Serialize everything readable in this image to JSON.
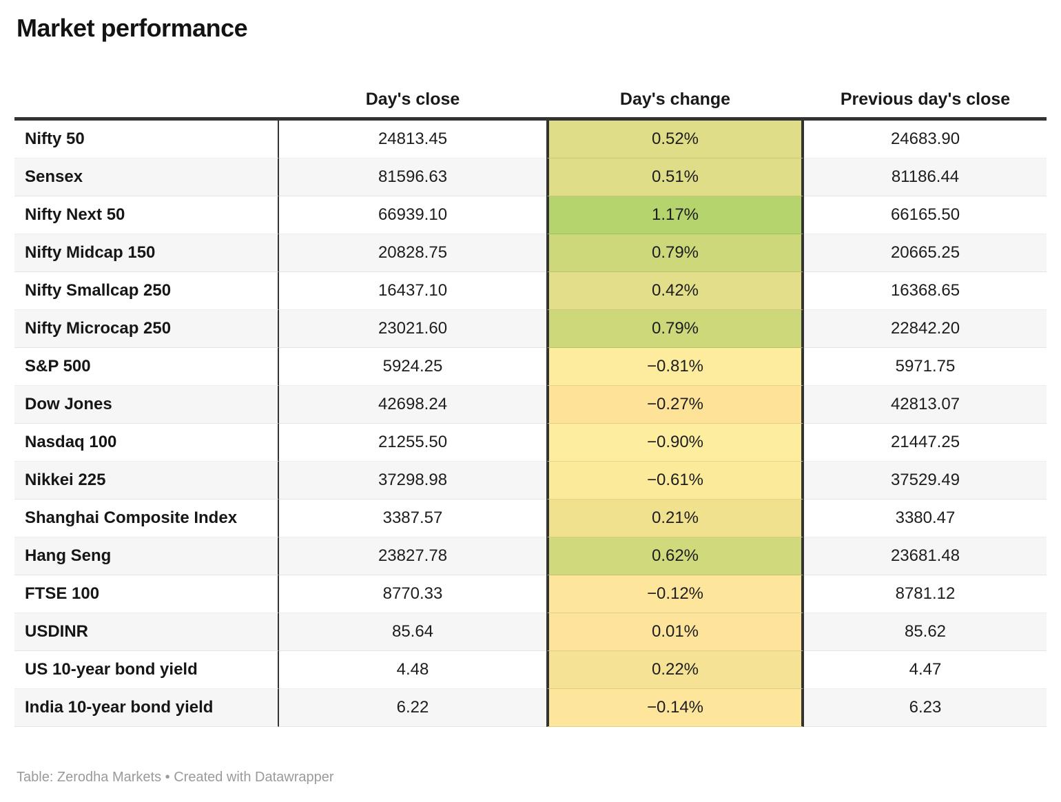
{
  "title": "Market performance",
  "footer": "Table: Zerodha Markets • Created with Datawrapper",
  "colors": {
    "dark_border": "#333333",
    "stripe": "#f6f6f6",
    "text": "#1d1d1d",
    "footer_text": "#9a9a9a"
  },
  "table": {
    "columns": [
      "",
      "Day's close",
      "Day's change",
      "Previous day's close"
    ],
    "rows": [
      {
        "label": "Nifty 50",
        "close": "24813.45",
        "change": "0.52%",
        "prev": "24683.90",
        "change_color": "#dfdd88"
      },
      {
        "label": "Sensex",
        "close": "81596.63",
        "change": "0.51%",
        "prev": "81186.44",
        "change_color": "#dfdd88"
      },
      {
        "label": "Nifty Next 50",
        "close": "66939.10",
        "change": "1.17%",
        "prev": "66165.50",
        "change_color": "#b6d46e"
      },
      {
        "label": "Nifty Midcap 150",
        "close": "20828.75",
        "change": "0.79%",
        "prev": "20665.25",
        "change_color": "#cdd87a"
      },
      {
        "label": "Nifty Smallcap 250",
        "close": "16437.10",
        "change": "0.42%",
        "prev": "16368.65",
        "change_color": "#e3de8a"
      },
      {
        "label": "Nifty Microcap 250",
        "close": "23021.60",
        "change": "0.79%",
        "prev": "22842.20",
        "change_color": "#cdd87a"
      },
      {
        "label": "S&P 500",
        "close": "5924.25",
        "change": "−0.81%",
        "prev": "5971.75",
        "change_color": "#fdec9d"
      },
      {
        "label": "Dow Jones",
        "close": "42698.24",
        "change": "−0.27%",
        "prev": "42813.07",
        "change_color": "#fde298"
      },
      {
        "label": "Nasdaq 100",
        "close": "21255.50",
        "change": "−0.90%",
        "prev": "21447.25",
        "change_color": "#fdee9f"
      },
      {
        "label": "Nikkei 225",
        "close": "37298.98",
        "change": "−0.61%",
        "prev": "37529.49",
        "change_color": "#fcea9b"
      },
      {
        "label": "Shanghai Composite Index",
        "close": "3387.57",
        "change": "0.21%",
        "prev": "3380.47",
        "change_color": "#f0e18e"
      },
      {
        "label": "Hang Seng",
        "close": "23827.78",
        "change": "0.62%",
        "prev": "23681.48",
        "change_color": "#d0d97c"
      },
      {
        "label": "FTSE 100",
        "close": "8770.33",
        "change": "−0.12%",
        "prev": "8781.12",
        "change_color": "#fde69c"
      },
      {
        "label": "USDINR",
        "close": "85.64",
        "change": "0.01%",
        "prev": "85.62",
        "change_color": "#fde49a"
      },
      {
        "label": "US 10-year bond yield",
        "close": "4.48",
        "change": "0.22%",
        "prev": "4.47",
        "change_color": "#f5e294"
      },
      {
        "label": "India 10-year bond yield",
        "close": "6.22",
        "change": "−0.14%",
        "prev": "6.23",
        "change_color": "#fde69b"
      }
    ]
  },
  "chart_data": {
    "type": "table",
    "title": "Market performance",
    "columns": [
      "",
      "Day's close",
      "Day's change",
      "Previous day's close"
    ],
    "rows": [
      [
        "Nifty 50",
        24813.45,
        0.52,
        24683.9
      ],
      [
        "Sensex",
        81596.63,
        0.51,
        81186.44
      ],
      [
        "Nifty Next 50",
        66939.1,
        1.17,
        66165.5
      ],
      [
        "Nifty Midcap 150",
        20828.75,
        0.79,
        20665.25
      ],
      [
        "Nifty Smallcap 250",
        16437.1,
        0.42,
        16368.65
      ],
      [
        "Nifty Microcap 250",
        23021.6,
        0.79,
        22842.2
      ],
      [
        "S&P 500",
        5924.25,
        -0.81,
        5971.75
      ],
      [
        "Dow Jones",
        42698.24,
        -0.27,
        42813.07
      ],
      [
        "Nasdaq 100",
        21255.5,
        -0.9,
        21447.25
      ],
      [
        "Nikkei 225",
        37298.98,
        -0.61,
        37529.49
      ],
      [
        "Shanghai Composite Index",
        3387.57,
        0.21,
        3380.47
      ],
      [
        "Hang Seng",
        23827.78,
        0.62,
        23681.48
      ],
      [
        "FTSE 100",
        8770.33,
        -0.12,
        8781.12
      ],
      [
        "USDINR",
        85.64,
        0.01,
        85.62
      ],
      [
        "US 10-year bond yield",
        4.48,
        0.22,
        4.47
      ],
      [
        "India 10-year bond yield",
        6.22,
        -0.14,
        6.23
      ]
    ],
    "notes": "Day's change column uses a color scale from pale/warm yellow (negative) to green (positive); source footer: Table: Zerodha Markets • Created with Datawrapper"
  }
}
